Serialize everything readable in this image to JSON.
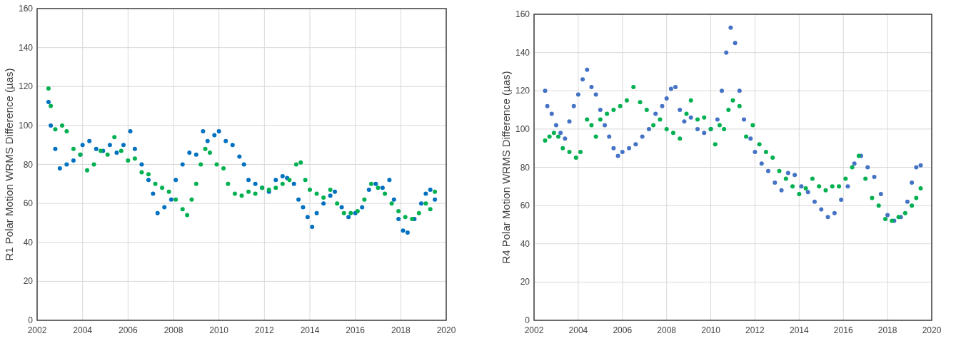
{
  "chart_data": [
    {
      "type": "scatter",
      "ylabel": "R1 Polar Motion WRMS Difference (µas)",
      "xlim": [
        2002,
        2020
      ],
      "xticks": [
        2002,
        2004,
        2006,
        2008,
        2010,
        2012,
        2014,
        2016,
        2018,
        2020
      ],
      "ylim": [
        0,
        160
      ],
      "yticks": [
        0,
        20,
        40,
        60,
        80,
        100,
        120,
        140,
        160
      ],
      "grid": true,
      "marker": "circle",
      "series": [
        {
          "color": "#0070c0",
          "x": [
            2002.5,
            2002.6,
            2002.8,
            2003.0,
            2003.3,
            2003.6,
            2003.9,
            2004.0,
            2004.3,
            2004.6,
            2004.9,
            2005.2,
            2005.5,
            2005.8,
            2006.1,
            2006.3,
            2006.6,
            2006.9,
            2007.1,
            2007.3,
            2007.6,
            2007.9,
            2008.1,
            2008.4,
            2008.7,
            2009.0,
            2009.3,
            2009.5,
            2009.8,
            2010.0,
            2010.3,
            2010.6,
            2010.9,
            2011.1,
            2011.3,
            2011.6,
            2011.9,
            2012.2,
            2012.5,
            2012.8,
            2013.0,
            2013.3,
            2013.5,
            2013.7,
            2013.9,
            2014.1,
            2014.3,
            2014.6,
            2014.9,
            2015.1,
            2015.4,
            2015.7,
            2016.0,
            2016.3,
            2016.6,
            2016.9,
            2017.2,
            2017.5,
            2017.7,
            2017.9,
            2018.1,
            2018.3,
            2018.6,
            2018.9,
            2019.1,
            2019.3,
            2019.5
          ],
          "values": [
            112,
            100,
            88,
            78,
            80,
            82,
            85,
            90,
            92,
            88,
            87,
            90,
            86,
            90,
            97,
            88,
            80,
            72,
            65,
            55,
            58,
            62,
            72,
            80,
            86,
            85,
            97,
            92,
            95,
            97,
            92,
            90,
            84,
            80,
            72,
            70,
            68,
            66,
            72,
            74,
            73,
            70,
            62,
            58,
            53,
            48,
            55,
            60,
            64,
            66,
            58,
            53,
            55,
            58,
            67,
            70,
            68,
            72,
            62,
            52,
            46,
            45,
            52,
            60,
            65,
            67,
            62
          ]
        },
        {
          "color": "#00b050",
          "x": [
            2002.5,
            2002.6,
            2002.8,
            2003.1,
            2003.3,
            2003.6,
            2003.9,
            2004.2,
            2004.5,
            2004.8,
            2005.1,
            2005.4,
            2005.7,
            2006.0,
            2006.3,
            2006.6,
            2006.9,
            2007.2,
            2007.5,
            2007.8,
            2008.1,
            2008.4,
            2008.6,
            2008.8,
            2009.0,
            2009.2,
            2009.4,
            2009.6,
            2009.9,
            2010.2,
            2010.4,
            2010.7,
            2011.0,
            2011.3,
            2011.6,
            2011.9,
            2012.2,
            2012.5,
            2012.8,
            2013.1,
            2013.4,
            2013.6,
            2013.8,
            2014.0,
            2014.3,
            2014.6,
            2014.9,
            2015.2,
            2015.5,
            2015.8,
            2016.1,
            2016.4,
            2016.7,
            2017.0,
            2017.3,
            2017.6,
            2017.9,
            2018.2,
            2018.5,
            2018.8,
            2019.1,
            2019.3,
            2019.5
          ],
          "values": [
            119,
            110,
            98,
            100,
            97,
            88,
            85,
            77,
            80,
            87,
            85,
            94,
            87,
            82,
            83,
            76,
            75,
            70,
            68,
            66,
            62,
            57,
            54,
            62,
            70,
            80,
            88,
            86,
            80,
            78,
            70,
            65,
            64,
            66,
            65,
            68,
            67,
            68,
            70,
            72,
            80,
            81,
            72,
            67,
            65,
            63,
            67,
            60,
            55,
            55,
            56,
            62,
            70,
            68,
            65,
            60,
            56,
            53,
            52,
            55,
            60,
            57,
            66
          ]
        }
      ]
    },
    {
      "type": "scatter",
      "ylabel": "R4 Polar Motion WRMS Difference (µas)",
      "xlim": [
        2002,
        2020
      ],
      "xticks": [
        2002,
        2004,
        2006,
        2008,
        2010,
        2012,
        2014,
        2016,
        2018,
        2020
      ],
      "ylim": [
        0,
        160
      ],
      "yticks": [
        0,
        20,
        40,
        60,
        80,
        100,
        120,
        140,
        160
      ],
      "grid": true,
      "marker": "circle",
      "series": [
        {
          "color": "#4472c4",
          "x": [
            2002.5,
            2002.6,
            2002.8,
            2003.0,
            2003.2,
            2003.4,
            2003.6,
            2003.8,
            2004.0,
            2004.2,
            2004.4,
            2004.6,
            2004.8,
            2005.0,
            2005.2,
            2005.4,
            2005.6,
            2005.8,
            2006.0,
            2006.3,
            2006.6,
            2006.9,
            2007.2,
            2007.5,
            2007.8,
            2008.0,
            2008.2,
            2008.4,
            2008.6,
            2008.8,
            2009.1,
            2009.4,
            2009.7,
            2010.0,
            2010.3,
            2010.5,
            2010.7,
            2010.9,
            2011.1,
            2011.3,
            2011.5,
            2011.8,
            2012.0,
            2012.3,
            2012.6,
            2012.9,
            2013.2,
            2013.5,
            2013.8,
            2014.1,
            2014.4,
            2014.7,
            2015.0,
            2015.3,
            2015.6,
            2015.9,
            2016.2,
            2016.5,
            2016.8,
            2017.1,
            2017.4,
            2017.7,
            2018.0,
            2018.3,
            2018.6,
            2018.9,
            2019.1,
            2019.3,
            2019.5
          ],
          "values": [
            120,
            112,
            108,
            102,
            98,
            95,
            104,
            112,
            118,
            126,
            131,
            122,
            118,
            110,
            102,
            96,
            90,
            86,
            88,
            90,
            92,
            96,
            100,
            108,
            112,
            116,
            121,
            122,
            110,
            104,
            106,
            100,
            98,
            100,
            105,
            120,
            140,
            153,
            145,
            120,
            105,
            95,
            88,
            82,
            78,
            72,
            68,
            77,
            76,
            70,
            67,
            62,
            58,
            54,
            56,
            63,
            70,
            82,
            86,
            80,
            75,
            66,
            55,
            52,
            54,
            62,
            72,
            80,
            81
          ]
        },
        {
          "color": "#00b050",
          "x": [
            2002.5,
            2002.7,
            2002.9,
            2003.1,
            2003.3,
            2003.6,
            2003.9,
            2004.1,
            2004.4,
            2004.6,
            2004.8,
            2005.0,
            2005.3,
            2005.6,
            2005.9,
            2006.2,
            2006.5,
            2006.8,
            2007.1,
            2007.4,
            2007.7,
            2008.0,
            2008.3,
            2008.6,
            2008.9,
            2009.1,
            2009.4,
            2009.7,
            2010.0,
            2010.2,
            2010.4,
            2010.6,
            2010.8,
            2011.0,
            2011.3,
            2011.6,
            2011.9,
            2012.2,
            2012.5,
            2012.8,
            2013.1,
            2013.4,
            2013.7,
            2014.0,
            2014.3,
            2014.6,
            2014.9,
            2015.2,
            2015.5,
            2015.8,
            2016.1,
            2016.4,
            2016.7,
            2017.0,
            2017.3,
            2017.6,
            2017.9,
            2018.2,
            2018.5,
            2018.8,
            2019.1,
            2019.3,
            2019.5
          ],
          "values": [
            94,
            96,
            98,
            96,
            90,
            88,
            85,
            88,
            105,
            102,
            96,
            105,
            108,
            110,
            112,
            115,
            122,
            114,
            110,
            102,
            105,
            100,
            98,
            95,
            108,
            115,
            105,
            106,
            100,
            92,
            102,
            100,
            110,
            115,
            112,
            96,
            102,
            92,
            88,
            85,
            78,
            74,
            70,
            66,
            69,
            74,
            70,
            68,
            70,
            70,
            74,
            80,
            86,
            74,
            64,
            60,
            53,
            52,
            54,
            56,
            60,
            64,
            69
          ]
        }
      ]
    }
  ]
}
